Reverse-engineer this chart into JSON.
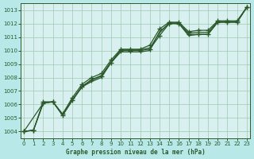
{
  "title": "Graphe pression niveau de la mer (hPa)",
  "background_color": "#b8e8e8",
  "plot_bg_color": "#d8f0f0",
  "line_color": "#2d5a2d",
  "grid_color": "#a0c8b0",
  "ylim": [
    1003.5,
    1013.5
  ],
  "yticks": [
    1004,
    1005,
    1006,
    1007,
    1008,
    1009,
    1010,
    1011,
    1012,
    1013
  ],
  "xlim": [
    -0.3,
    23.3
  ],
  "xticks": [
    0,
    1,
    2,
    3,
    4,
    5,
    6,
    7,
    8,
    9,
    10,
    11,
    12,
    13,
    14,
    15,
    16,
    17,
    18,
    19,
    20,
    21,
    22,
    23
  ],
  "series": [
    {
      "x": [
        0,
        1,
        2,
        3,
        4,
        5,
        6,
        7,
        8,
        9,
        10,
        11,
        12,
        13,
        14,
        15,
        16,
        17,
        18,
        19,
        20,
        21,
        22,
        23
      ],
      "y": [
        1004.0,
        1004.1,
        1006.1,
        1006.2,
        1005.2,
        1006.3,
        1007.3,
        1007.8,
        1008.1,
        1009.1,
        1010.0,
        1010.0,
        1010.0,
        1010.1,
        1011.1,
        1012.0,
        1012.0,
        1011.2,
        1011.2,
        1011.2,
        1012.1,
        1012.1,
        1012.1,
        1013.2
      ],
      "marker": "+"
    },
    {
      "x": [
        0,
        1,
        2,
        3,
        4,
        5,
        6,
        7,
        8,
        9,
        10,
        11,
        12,
        13,
        14,
        15,
        16,
        17,
        18,
        19,
        20,
        21,
        22,
        23
      ],
      "y": [
        1004.0,
        1004.1,
        1006.2,
        1006.2,
        1005.3,
        1006.5,
        1007.5,
        1008.0,
        1008.3,
        1009.3,
        1010.1,
        1010.1,
        1010.1,
        1010.4,
        1011.6,
        1012.1,
        1012.1,
        1011.4,
        1011.5,
        1011.5,
        1012.2,
        1012.2,
        1012.2,
        1013.2
      ],
      "marker": "+"
    },
    {
      "x": [
        0,
        2,
        3,
        4,
        5,
        6,
        7,
        8,
        9,
        10,
        11,
        12,
        13,
        14,
        15,
        16,
        17,
        18,
        19,
        20,
        21,
        22,
        23
      ],
      "y": [
        1004.0,
        1006.1,
        1006.2,
        1005.25,
        1006.35,
        1007.35,
        1007.85,
        1008.15,
        1009.15,
        1010.05,
        1010.05,
        1010.05,
        1010.2,
        1011.3,
        1012.05,
        1012.05,
        1011.3,
        1011.35,
        1011.35,
        1012.15,
        1012.15,
        1012.15,
        1013.2
      ],
      "marker": null
    },
    {
      "x": [
        0,
        1,
        2,
        3,
        4,
        5,
        6,
        7,
        8,
        9,
        10,
        11,
        12,
        13,
        14,
        15,
        16,
        17,
        18,
        19,
        20,
        21,
        22,
        23
      ],
      "y": [
        1004.0,
        1004.1,
        1006.1,
        1006.2,
        1005.2,
        1006.3,
        1007.3,
        1007.7,
        1008.0,
        1009.1,
        1009.9,
        1009.9,
        1009.9,
        1010.0,
        1011.4,
        1012.0,
        1012.0,
        1011.1,
        1011.2,
        1011.2,
        1012.1,
        1012.1,
        1012.1,
        1013.2
      ],
      "marker": null
    }
  ],
  "markersize": 4,
  "linewidth": 0.9
}
